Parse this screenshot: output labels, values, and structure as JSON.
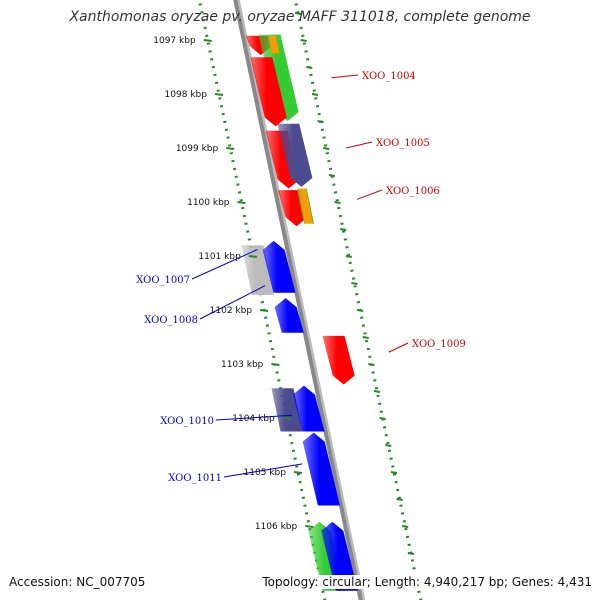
{
  "title": "Xanthomonas oryzae pv. oryzae MAFF 311018, complete genome",
  "footer": {
    "accession": "Accession: NC_007705",
    "summary": "Topology: circular; Length: 4,940,217 bp; Genes: 4,431"
  },
  "ticks": [
    "1097 kbp",
    "1098 kbp",
    "1099 kbp",
    "1100 kbp",
    "1101 kbp",
    "1102 kbp",
    "1103 kbp",
    "1104 kbp",
    "1105 kbp",
    "1106 kbp"
  ],
  "colors": {
    "forward_label": "#cc0000",
    "reverse_label": "#0000cc",
    "gene_red": "#ff0000",
    "gene_blue": "#0000ff",
    "gene_green": "#33cc33",
    "gene_navy": "#4b4b8f",
    "gene_orange": "#ff9900",
    "gene_gray": "#bbbbbb",
    "backbone": "#888888",
    "dotted_ring": "#228b22"
  },
  "gene_labels": [
    {
      "text": "XOO_1004",
      "strand": "forward"
    },
    {
      "text": "XOO_1005",
      "strand": "forward"
    },
    {
      "text": "XOO_1006",
      "strand": "forward"
    },
    {
      "text": "XOO_1007",
      "strand": "reverse"
    },
    {
      "text": "XOO_1008",
      "strand": "reverse"
    },
    {
      "text": "XOO_1009",
      "strand": "forward"
    },
    {
      "text": "XOO_1010",
      "strand": "reverse"
    },
    {
      "text": "XOO_1011",
      "strand": "reverse"
    }
  ],
  "features": [
    {
      "strand": "forward",
      "color": "gene_red",
      "start": 1096.92,
      "end": 1097.28,
      "arrow": "end"
    },
    {
      "strand": "forward",
      "color": "gene_green",
      "start": 1096.9,
      "end": 1098.5,
      "arrow": "end",
      "offset": 13
    },
    {
      "strand": "forward",
      "color": "gene_orange",
      "start": 1096.92,
      "end": 1097.25,
      "arrow": "none",
      "offset": 23
    },
    {
      "strand": "forward",
      "color": "gene_red",
      "start": 1097.32,
      "end": 1098.6,
      "arrow": "end"
    },
    {
      "strand": "forward",
      "color": "gene_red",
      "start": 1098.68,
      "end": 1099.75,
      "arrow": "end"
    },
    {
      "strand": "forward",
      "color": "gene_navy",
      "start": 1098.55,
      "end": 1099.72,
      "arrow": "end",
      "offset": 13
    },
    {
      "strand": "forward",
      "color": "gene_red",
      "start": 1099.78,
      "end": 1100.45,
      "arrow": "end"
    },
    {
      "strand": "forward",
      "color": "gene_green",
      "start": 1099.75,
      "end": 1100.4,
      "arrow": "none",
      "offset": 13
    },
    {
      "strand": "forward",
      "color": "gene_orange",
      "start": 1099.75,
      "end": 1100.4,
      "arrow": "none",
      "offset": 21
    },
    {
      "strand": "reverse",
      "color": "gene_gray",
      "start": 1100.8,
      "end": 1101.72,
      "arrow": "none",
      "offset": -22
    },
    {
      "strand": "reverse",
      "color": "gene_blue",
      "start": 1100.72,
      "end": 1101.68,
      "arrow": "start",
      "offset": 0
    },
    {
      "strand": "reverse",
      "color": "gene_blue",
      "start": 1101.78,
      "end": 1102.42,
      "arrow": "start",
      "offset": 0
    },
    {
      "strand": "forward",
      "color": "gene_red",
      "start": 1102.48,
      "end": 1103.38,
      "arrow": "end",
      "offset": 22
    },
    {
      "strand": "reverse",
      "color": "gene_navy",
      "start": 1103.45,
      "end": 1104.25,
      "arrow": "none",
      "offset": -22
    },
    {
      "strand": "reverse",
      "color": "gene_blue",
      "start": 1103.4,
      "end": 1104.25,
      "arrow": "start",
      "offset": 0
    },
    {
      "strand": "reverse",
      "color": "gene_blue",
      "start": 1104.27,
      "end": 1105.62,
      "arrow": "start",
      "offset": 0
    },
    {
      "strand": "reverse",
      "color": "gene_green",
      "start": 1105.92,
      "end": 1107.2,
      "arrow": "start",
      "offset": -13
    },
    {
      "strand": "reverse",
      "color": "gene_blue",
      "start": 1105.92,
      "end": 1107.2,
      "arrow": "start",
      "offset": 0
    }
  ]
}
